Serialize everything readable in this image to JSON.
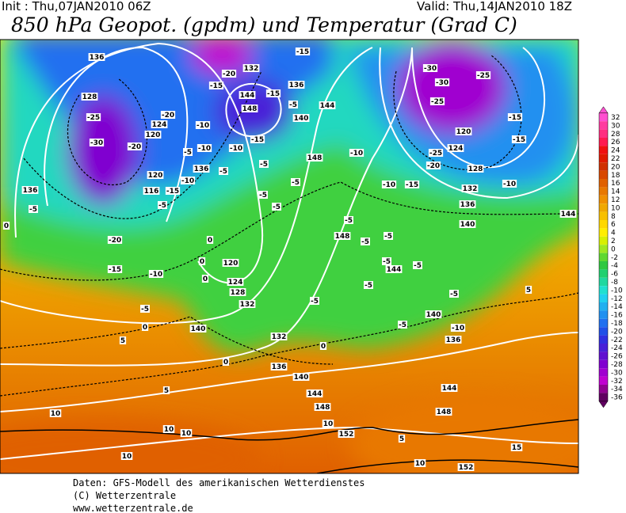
{
  "header": {
    "init": "Init : Thu,07JAN2010 06Z",
    "valid": "Valid: Thu,14JAN2010 18Z",
    "title": "850 hPa Geopot. (gpdm) und Temperatur (Grad C)"
  },
  "map": {
    "contour_labels": [
      "136",
      "128",
      "124",
      "120",
      "-25",
      "-30",
      "-20",
      "-20",
      "136",
      "-5",
      "-20",
      "-15",
      "-10",
      "120",
      "116",
      "-15",
      "-5",
      "-10",
      "-5",
      "-10",
      "-10",
      "-5",
      "136",
      "-15",
      "-20",
      "132",
      "-15",
      "144",
      "148",
      "-10",
      "-15",
      "-5",
      "-5",
      "136",
      "140",
      "144",
      "-15",
      "148",
      "-5",
      "-5",
      "-5",
      "-10",
      "-10",
      "-15",
      "-30",
      "-30",
      "-25",
      "-25",
      "-15",
      "120",
      "124",
      "-25",
      "-20",
      "128",
      "-15",
      "-10",
      "132",
      "136",
      "140",
      "144",
      "-5",
      "148",
      "-5",
      "-5",
      "-5",
      "144",
      "-5",
      "-5",
      "-5",
      "-5",
      "-5",
      "140",
      "-10",
      "136",
      "5",
      "120",
      "124",
      "128",
      "132",
      "0",
      "0",
      "0",
      "140",
      "-5",
      "0",
      "5",
      "0",
      "5",
      "132",
      "0",
      "136",
      "140",
      "144",
      "148",
      "10",
      "152",
      "144",
      "148",
      "5",
      "10",
      "152",
      "15",
      "10",
      "10",
      "10",
      "10",
      "0"
    ]
  },
  "colorbar": {
    "ticks": [
      32,
      30,
      28,
      26,
      24,
      22,
      20,
      18,
      16,
      14,
      12,
      10,
      8,
      6,
      4,
      2,
      0,
      -2,
      -4,
      -6,
      -8,
      -10,
      -12,
      -14,
      -16,
      -18,
      -20,
      -22,
      -24,
      -26,
      -28,
      -30,
      -32,
      -34,
      -36
    ],
    "colors": [
      "#ff4fd0",
      "#ff3ca0",
      "#ff2e80",
      "#ff1a50",
      "#f01010",
      "#e01a00",
      "#d03000",
      "#d84800",
      "#e06000",
      "#e87800",
      "#f09000",
      "#f0a800",
      "#f8c000",
      "#ffd800",
      "#ffee00",
      "#d8f000",
      "#a0e820",
      "#60d830",
      "#30c840",
      "#20d070",
      "#20d8a0",
      "#20e0d0",
      "#20d0f0",
      "#20b0f0",
      "#2090f0",
      "#2070f0",
      "#2050e8",
      "#3030e0",
      "#4820d8",
      "#6010d0",
      "#8000d0",
      "#a000d0",
      "#c000d0",
      "#900090",
      "#600060"
    ]
  },
  "footer": {
    "lines": [
      "Daten: GFS-Modell des amerikanischen Wetterdienstes",
      "(C) Wetterzentrale",
      "www.wetterzentrale.de"
    ]
  }
}
